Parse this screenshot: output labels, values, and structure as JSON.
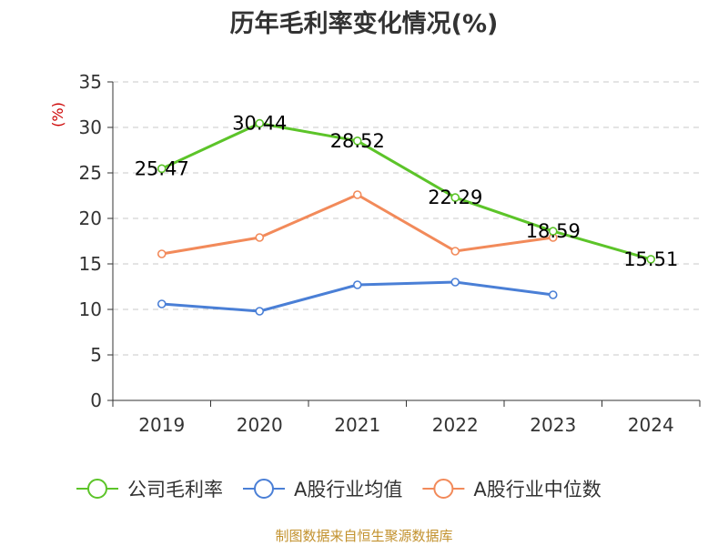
{
  "title": "历年毛利率变化情况(%)",
  "source_note": "制图数据来自恒生聚源数据库",
  "chart_data": {
    "type": "line",
    "title": "历年毛利率变化情况(%)",
    "ylabel": "(%)",
    "xlabel": "",
    "categories": [
      "2019",
      "2020",
      "2021",
      "2022",
      "2023",
      "2024"
    ],
    "ylim": [
      0,
      35
    ],
    "yticks": [
      0,
      5,
      10,
      15,
      20,
      25,
      30,
      35
    ],
    "grid": true,
    "legend_position": "bottom",
    "series": [
      {
        "name": "公司毛利率",
        "color": "#5cc429",
        "values": [
          25.47,
          30.44,
          28.52,
          22.29,
          18.59,
          15.51
        ],
        "show_labels": true
      },
      {
        "name": "A股行业均值",
        "color": "#4a7fd6",
        "values": [
          10.6,
          9.8,
          12.7,
          13.0,
          11.6,
          null
        ],
        "show_labels": false
      },
      {
        "name": "A股行业中位数",
        "color": "#f28a5a",
        "values": [
          16.1,
          17.9,
          22.6,
          16.4,
          17.9,
          null
        ],
        "show_labels": false
      }
    ]
  }
}
